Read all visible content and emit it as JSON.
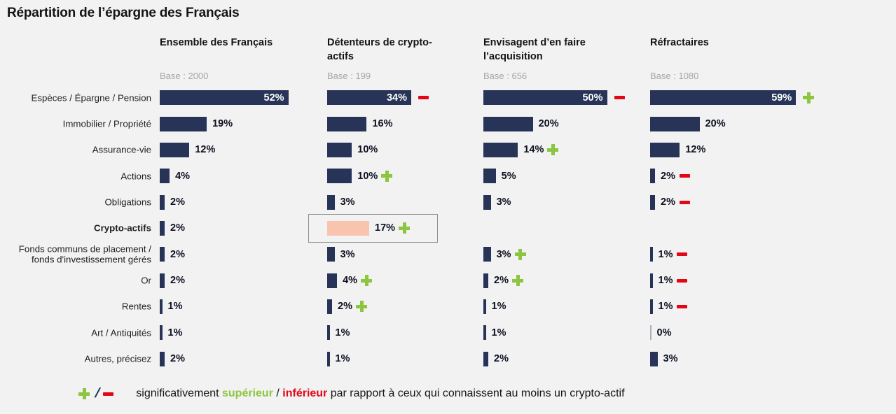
{
  "title": "Répartition de l’épargne des Français",
  "colors": {
    "background": "#f2f2f2",
    "bar": "#273457",
    "highlight_bar": "#f9c4ae",
    "plus": "#8cc63f",
    "minus": "#e30617",
    "base_text": "#a6a6a6",
    "highlight_box_border": "#8f8f8f"
  },
  "icons": {
    "plus": "green-cross-shape",
    "minus": "red-bar-shape",
    "slash": "/"
  },
  "columns": [
    {
      "label": "Ensemble des Français",
      "base": "Base : 2000"
    },
    {
      "label": "Détenteurs de crypto-actifs",
      "base": "Base : 199"
    },
    {
      "label": "Envisagent d’en faire l’acquisition",
      "base": "Base : 656"
    },
    {
      "label": "Réfractaires",
      "base": "Base : 1080"
    }
  ],
  "chart_data": {
    "type": "bar",
    "orientation": "horizontal",
    "unit": "%",
    "title": "Répartition de l’épargne des Français",
    "categories": [
      "Espèces / Épargne / Pension",
      "Immobilier / Propriété",
      "Assurance-vie",
      "Actions",
      "Obligations",
      "Crypto-actifs",
      "Fonds communs de placement / fonds d'investissement gérés",
      "Or",
      "Rentes",
      "Art / Antiquités",
      "Autres, précisez"
    ],
    "emphasized_category": "Crypto-actifs",
    "series": [
      {
        "name": "Ensemble des Français",
        "base": 2000,
        "values": [
          52,
          19,
          12,
          4,
          2,
          2,
          2,
          2,
          1,
          1,
          2
        ],
        "signs": [
          null,
          null,
          null,
          null,
          null,
          null,
          null,
          null,
          null,
          null,
          null
        ]
      },
      {
        "name": "Détenteurs de crypto-actifs",
        "base": 199,
        "values": [
          34,
          16,
          10,
          10,
          3,
          17,
          3,
          4,
          2,
          1,
          1
        ],
        "signs": [
          "minus",
          null,
          null,
          "plus",
          null,
          "plus",
          null,
          "plus",
          "plus",
          null,
          null
        ]
      },
      {
        "name": "Envisagent d’en faire l’acquisition",
        "base": 656,
        "values": [
          50,
          20,
          14,
          5,
          3,
          null,
          3,
          2,
          1,
          1,
          2
        ],
        "signs": [
          "minus",
          null,
          "plus",
          null,
          null,
          null,
          "plus",
          "plus",
          null,
          null,
          null
        ]
      },
      {
        "name": "Réfractaires",
        "base": 1080,
        "values": [
          59,
          20,
          12,
          2,
          2,
          null,
          1,
          1,
          1,
          0,
          3
        ],
        "signs": [
          "plus",
          null,
          null,
          "minus",
          "minus",
          null,
          "minus",
          "minus",
          "minus",
          null,
          null
        ]
      }
    ],
    "highlight": {
      "series": 1,
      "row": 5
    },
    "value_range": [
      0,
      60
    ],
    "grid": false,
    "legend_position": "bottom"
  },
  "legend": {
    "parts": [
      {
        "text": "significativement "
      },
      {
        "text": "supérieur"
      },
      {
        "text": " / "
      },
      {
        "text": "inférieur"
      },
      {
        "text": " par rapport à ceux qui connaissent au moins un crypto-actif"
      }
    ]
  }
}
